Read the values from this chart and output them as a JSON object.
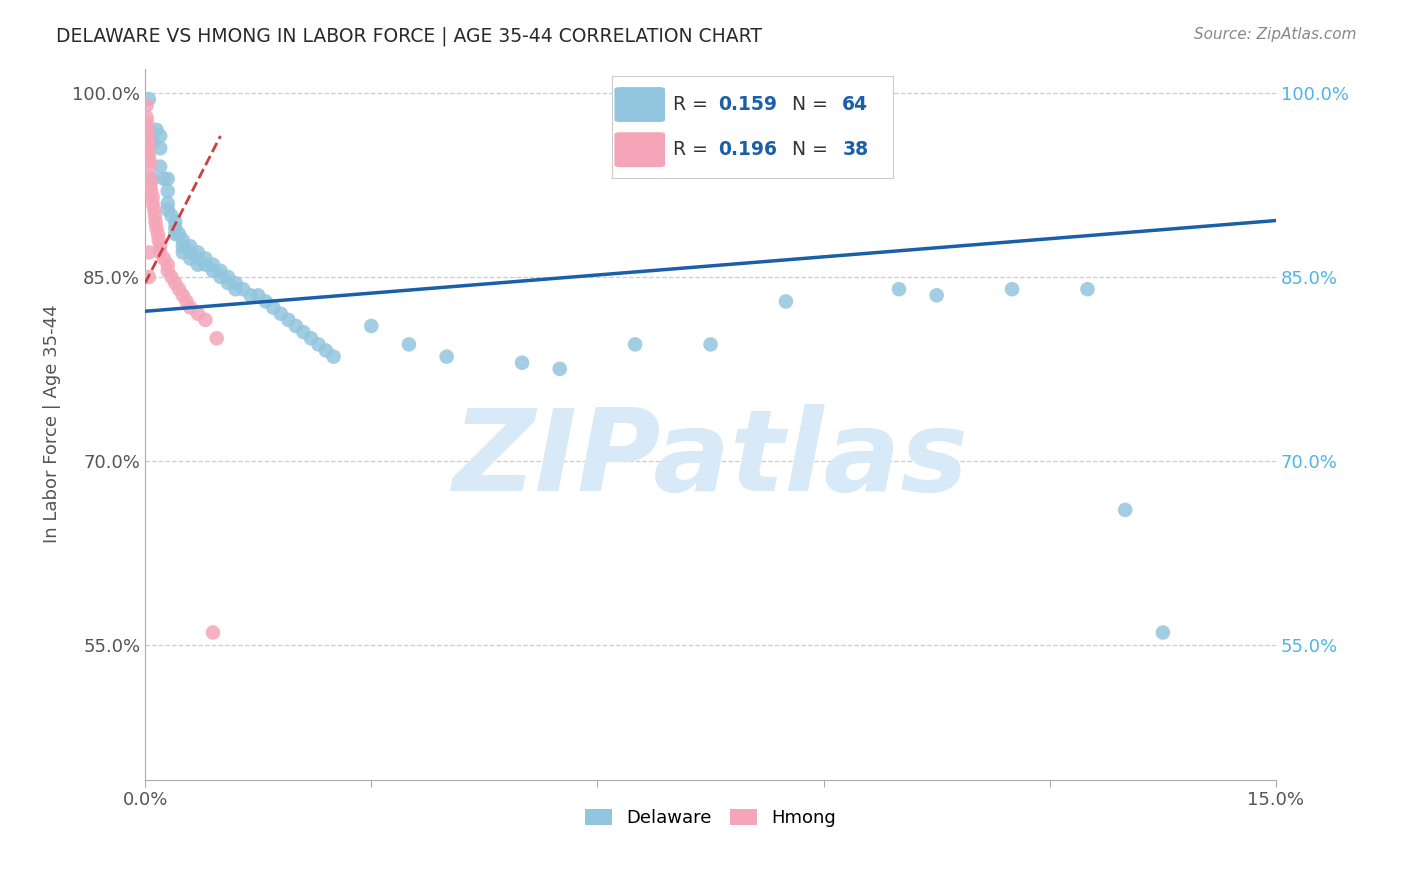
{
  "title": "DELAWARE VS HMONG IN LABOR FORCE | AGE 35-44 CORRELATION CHART",
  "source": "Source: ZipAtlas.com",
  "ylabel": "In Labor Force | Age 35-44",
  "xlim": [
    0.0,
    0.15
  ],
  "ylim": [
    0.44,
    1.02
  ],
  "xticks": [
    0.0,
    0.03,
    0.06,
    0.09,
    0.12,
    0.15
  ],
  "xticklabels": [
    "0.0%",
    "",
    "",
    "",
    "",
    "15.0%"
  ],
  "yticks": [
    0.55,
    0.7,
    0.85,
    1.0
  ],
  "yticklabels": [
    "55.0%",
    "70.0%",
    "85.0%",
    "100.0%"
  ],
  "legend_r_n": [
    {
      "r": "0.159",
      "n": "64"
    },
    {
      "r": "0.196",
      "n": "38"
    }
  ],
  "blue_color": "#92c5de",
  "pink_color": "#f4a6b8",
  "trend_blue": "#1a5fa8",
  "trend_pink": "#c94040",
  "watermark": "ZIPatlas",
  "watermark_color": "#d8eaf7",
  "background_color": "#ffffff",
  "grid_color": "#cccccc",
  "title_color": "#2a2a2a",
  "axis_label_color": "#555555",
  "right_tick_color": "#4db6e4",
  "delaware_x": [
    0.0005,
    0.0005,
    0.001,
    0.001,
    0.0015,
    0.002,
    0.002,
    0.002,
    0.0025,
    0.003,
    0.003,
    0.003,
    0.003,
    0.0035,
    0.004,
    0.004,
    0.004,
    0.0045,
    0.005,
    0.005,
    0.005,
    0.006,
    0.006,
    0.006,
    0.007,
    0.007,
    0.007,
    0.008,
    0.008,
    0.009,
    0.009,
    0.01,
    0.01,
    0.011,
    0.011,
    0.012,
    0.012,
    0.013,
    0.014,
    0.015,
    0.016,
    0.017,
    0.018,
    0.019,
    0.02,
    0.021,
    0.022,
    0.023,
    0.024,
    0.025,
    0.03,
    0.035,
    0.04,
    0.05,
    0.055,
    0.065,
    0.075,
    0.085,
    0.1,
    0.105,
    0.115,
    0.125,
    0.13,
    0.135
  ],
  "delaware_y": [
    0.97,
    0.995,
    0.96,
    0.93,
    0.97,
    0.965,
    0.955,
    0.94,
    0.93,
    0.93,
    0.92,
    0.91,
    0.905,
    0.9,
    0.895,
    0.89,
    0.885,
    0.885,
    0.88,
    0.875,
    0.87,
    0.875,
    0.87,
    0.865,
    0.87,
    0.865,
    0.86,
    0.865,
    0.86,
    0.86,
    0.855,
    0.855,
    0.85,
    0.85,
    0.845,
    0.845,
    0.84,
    0.84,
    0.835,
    0.835,
    0.83,
    0.825,
    0.82,
    0.815,
    0.81,
    0.805,
    0.8,
    0.795,
    0.79,
    0.785,
    0.81,
    0.795,
    0.785,
    0.78,
    0.775,
    0.795,
    0.795,
    0.83,
    0.84,
    0.835,
    0.84,
    0.84,
    0.66,
    0.56
  ],
  "hmong_x": [
    0.0002,
    0.0002,
    0.0003,
    0.0003,
    0.0004,
    0.0004,
    0.0005,
    0.0005,
    0.0006,
    0.0006,
    0.0007,
    0.0007,
    0.0008,
    0.001,
    0.001,
    0.0012,
    0.0013,
    0.0014,
    0.0015,
    0.0017,
    0.0018,
    0.002,
    0.002,
    0.0025,
    0.003,
    0.003,
    0.0035,
    0.004,
    0.0045,
    0.005,
    0.0055,
    0.006,
    0.007,
    0.008,
    0.009,
    0.0095,
    0.0005,
    0.0005
  ],
  "hmong_y": [
    0.99,
    0.98,
    0.975,
    0.97,
    0.965,
    0.96,
    0.955,
    0.95,
    0.945,
    0.94,
    0.93,
    0.925,
    0.92,
    0.915,
    0.91,
    0.905,
    0.9,
    0.895,
    0.89,
    0.885,
    0.88,
    0.875,
    0.87,
    0.865,
    0.86,
    0.855,
    0.85,
    0.845,
    0.84,
    0.835,
    0.83,
    0.825,
    0.82,
    0.815,
    0.56,
    0.8,
    0.87,
    0.85
  ],
  "delaware_trend_x": [
    0.0,
    0.15
  ],
  "delaware_trend_y": [
    0.822,
    0.896
  ],
  "hmong_trend_x": [
    0.0,
    0.01
  ],
  "hmong_trend_y": [
    0.845,
    0.965
  ]
}
